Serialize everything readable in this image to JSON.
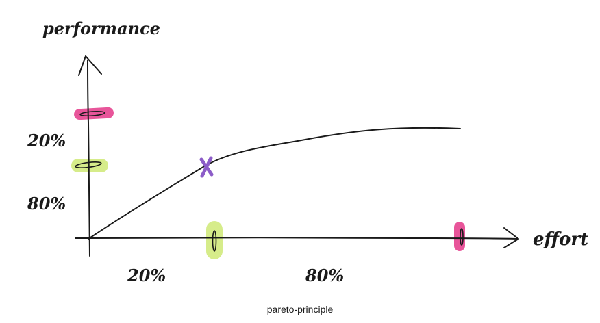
{
  "diagram": {
    "y_axis_label": "performance",
    "x_axis_label": "effort",
    "y_tick_labels": [
      "20%",
      "80%"
    ],
    "x_tick_labels": [
      "20%",
      "80%"
    ],
    "caption": "pareto-principle"
  },
  "colors": {
    "ink": "#1a1a1a",
    "pink_highlight": "#e8559a",
    "green_highlight": "#d6ec8a",
    "purple_mark": "#8c5cc8"
  }
}
